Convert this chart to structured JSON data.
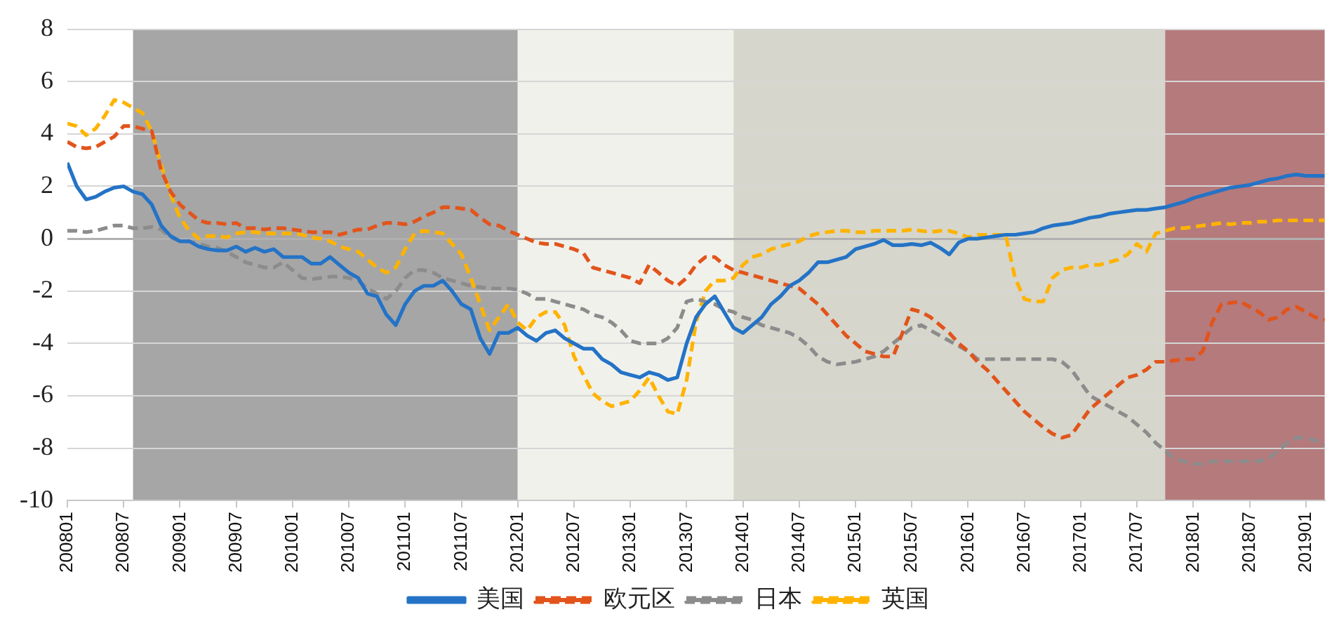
{
  "chart_data": {
    "type": "line",
    "legend": "bottom",
    "grid": "y",
    "marker": "none",
    "xlim": [
      "2008-01",
      "2019-03"
    ],
    "ylim": [
      -10,
      8
    ],
    "yticks": [
      -10,
      -8,
      -6,
      -4,
      -2,
      0,
      2,
      4,
      6,
      8
    ],
    "xticks": [
      {
        "value": "2008-01",
        "label": "200801"
      },
      {
        "value": "2008-07",
        "label": "200807"
      },
      {
        "value": "2009-01",
        "label": "200901"
      },
      {
        "value": "2009-07",
        "label": "200907"
      },
      {
        "value": "2010-01",
        "label": "201001"
      },
      {
        "value": "2010-07",
        "label": "201007"
      },
      {
        "value": "2011-01",
        "label": "201101"
      },
      {
        "value": "2011-07",
        "label": "201107"
      },
      {
        "value": "2012-01",
        "label": "201201"
      },
      {
        "value": "2012-07",
        "label": "201207"
      },
      {
        "value": "2013-01",
        "label": "201301"
      },
      {
        "value": "2013-07",
        "label": "201307"
      },
      {
        "value": "2014-01",
        "label": "201401"
      },
      {
        "value": "2014-07",
        "label": "201407"
      },
      {
        "value": "2015-01",
        "label": "201501"
      },
      {
        "value": "2015-07",
        "label": "201507"
      },
      {
        "value": "2016-01",
        "label": "201601"
      },
      {
        "value": "2016-07",
        "label": "201607"
      },
      {
        "value": "2017-01",
        "label": "201701"
      },
      {
        "value": "2017-07",
        "label": "201707"
      },
      {
        "value": "2018-01",
        "label": "201801"
      },
      {
        "value": "2018-07",
        "label": "201807"
      },
      {
        "value": "2019-01",
        "label": "201901"
      }
    ],
    "bands": [
      {
        "axis": "x",
        "from": "2008-08",
        "to": "2012-01",
        "color": "#a6a6a6"
      },
      {
        "axis": "x",
        "from": "2012-01",
        "to": "2013-12",
        "color": "#f1f1ec"
      },
      {
        "axis": "x",
        "from": "2013-12",
        "to": "2017-10",
        "color": "#d6d6cc"
      },
      {
        "axis": "x",
        "from": "2017-10",
        "to": "2019-03",
        "color": "#b57a7c"
      }
    ],
    "x": [
      "2008-01",
      "2008-02",
      "2008-03",
      "2008-04",
      "2008-05",
      "2008-06",
      "2008-07",
      "2008-08",
      "2008-09",
      "2008-10",
      "2008-11",
      "2008-12",
      "2009-01",
      "2009-02",
      "2009-03",
      "2009-04",
      "2009-05",
      "2009-06",
      "2009-07",
      "2009-08",
      "2009-09",
      "2009-10",
      "2009-11",
      "2009-12",
      "2010-01",
      "2010-02",
      "2010-03",
      "2010-04",
      "2010-05",
      "2010-06",
      "2010-07",
      "2010-08",
      "2010-09",
      "2010-10",
      "2010-11",
      "2010-12",
      "2011-01",
      "2011-02",
      "2011-03",
      "2011-04",
      "2011-05",
      "2011-06",
      "2011-07",
      "2011-08",
      "2011-09",
      "2011-10",
      "2011-11",
      "2011-12",
      "2012-01",
      "2012-02",
      "2012-03",
      "2012-04",
      "2012-05",
      "2012-06",
      "2012-07",
      "2012-08",
      "2012-09",
      "2012-10",
      "2012-11",
      "2012-12",
      "2013-01",
      "2013-02",
      "2013-03",
      "2013-04",
      "2013-05",
      "2013-06",
      "2013-07",
      "2013-08",
      "2013-09",
      "2013-10",
      "2013-11",
      "2013-12",
      "2014-01",
      "2014-02",
      "2014-03",
      "2014-04",
      "2014-05",
      "2014-06",
      "2014-07",
      "2014-08",
      "2014-09",
      "2014-10",
      "2014-11",
      "2014-12",
      "2015-01",
      "2015-02",
      "2015-03",
      "2015-04",
      "2015-05",
      "2015-06",
      "2015-07",
      "2015-08",
      "2015-09",
      "2015-10",
      "2015-11",
      "2015-12",
      "2016-01",
      "2016-02",
      "2016-03",
      "2016-04",
      "2016-05",
      "2016-06",
      "2016-07",
      "2016-08",
      "2016-09",
      "2016-10",
      "2016-11",
      "2016-12",
      "2017-01",
      "2017-02",
      "2017-03",
      "2017-04",
      "2017-05",
      "2017-06",
      "2017-07",
      "2017-08",
      "2017-09",
      "2017-10",
      "2017-11",
      "2017-12",
      "2018-01",
      "2018-02",
      "2018-03",
      "2018-04",
      "2018-05",
      "2018-06",
      "2018-07",
      "2018-08",
      "2018-09",
      "2018-10",
      "2018-11",
      "2018-12",
      "2019-01",
      "2019-02",
      "2019-03"
    ],
    "series": [
      {
        "name": "美国",
        "color": "#2473c6",
        "line_style": "solid",
        "values": [
          2.9,
          2.0,
          1.5,
          1.6,
          1.8,
          1.95,
          2.0,
          1.8,
          1.7,
          1.3,
          0.5,
          0.1,
          -0.1,
          -0.1,
          -0.3,
          -0.4,
          -0.45,
          -0.45,
          -0.3,
          -0.5,
          -0.35,
          -0.5,
          -0.4,
          -0.7,
          -0.7,
          -0.7,
          -0.95,
          -0.95,
          -0.7,
          -1.0,
          -1.3,
          -1.5,
          -2.1,
          -2.2,
          -2.9,
          -3.3,
          -2.5,
          -2.0,
          -1.8,
          -1.8,
          -1.6,
          -2.0,
          -2.5,
          -2.7,
          -3.8,
          -4.4,
          -3.6,
          -3.6,
          -3.4,
          -3.7,
          -3.9,
          -3.6,
          -3.5,
          -3.8,
          -4.0,
          -4.2,
          -4.2,
          -4.6,
          -4.8,
          -5.1,
          -5.2,
          -5.3,
          -5.1,
          -5.2,
          -5.4,
          -5.3,
          -4.0,
          -3.0,
          -2.5,
          -2.2,
          -2.8,
          -3.4,
          -3.6,
          -3.3,
          -3.0,
          -2.5,
          -2.2,
          -1.8,
          -1.6,
          -1.3,
          -0.9,
          -0.9,
          -0.8,
          -0.7,
          -0.4,
          -0.3,
          -0.2,
          -0.05,
          -0.25,
          -0.25,
          -0.2,
          -0.25,
          -0.15,
          -0.35,
          -0.6,
          -0.15,
          0,
          0,
          0.05,
          0.1,
          0.15,
          0.15,
          0.2,
          0.25,
          0.4,
          0.5,
          0.55,
          0.6,
          0.7,
          0.8,
          0.85,
          0.95,
          1.0,
          1.05,
          1.1,
          1.1,
          1.15,
          1.2,
          1.3,
          1.4,
          1.55,
          1.65,
          1.75,
          1.85,
          1.95,
          2.0,
          2.05,
          2.15,
          2.25,
          2.3,
          2.4,
          2.45,
          2.4,
          2.4,
          2.4
        ]
      },
      {
        "name": "欧元区",
        "color": "#e2541b",
        "line_style": "dashed",
        "values": [
          3.7,
          3.5,
          3.45,
          3.5,
          3.7,
          3.9,
          4.3,
          4.3,
          4.2,
          4.1,
          2.6,
          1.8,
          1.3,
          1.0,
          0.7,
          0.6,
          0.6,
          0.55,
          0.6,
          0.4,
          0.4,
          0.35,
          0.4,
          0.4,
          0.35,
          0.3,
          0.25,
          0.25,
          0.25,
          0.15,
          0.25,
          0.35,
          0.35,
          0.5,
          0.6,
          0.6,
          0.55,
          0.65,
          0.85,
          1.0,
          1.2,
          1.2,
          1.15,
          1.1,
          0.8,
          0.55,
          0.5,
          0.3,
          0.15,
          0.0,
          -0.15,
          -0.2,
          -0.2,
          -0.3,
          -0.4,
          -0.55,
          -1.1,
          -1.2,
          -1.3,
          -1.4,
          -1.5,
          -1.7,
          -1.0,
          -1.3,
          -1.6,
          -1.8,
          -1.5,
          -1.0,
          -0.7,
          -0.7,
          -1.0,
          -1.2,
          -1.3,
          -1.4,
          -1.5,
          -1.6,
          -1.7,
          -1.8,
          -1.9,
          -2.2,
          -2.5,
          -2.9,
          -3.3,
          -3.7,
          -4.0,
          -4.3,
          -4.4,
          -4.5,
          -4.5,
          -3.6,
          -2.7,
          -2.8,
          -3.0,
          -3.3,
          -3.6,
          -4.0,
          -4.3,
          -4.7,
          -5.0,
          -5.4,
          -5.8,
          -6.2,
          -6.6,
          -6.9,
          -7.2,
          -7.45,
          -7.6,
          -7.5,
          -7.0,
          -6.5,
          -6.2,
          -5.9,
          -5.6,
          -5.3,
          -5.2,
          -5.0,
          -4.7,
          -4.7,
          -4.65,
          -4.6,
          -4.6,
          -4.3,
          -3.2,
          -2.5,
          -2.45,
          -2.4,
          -2.6,
          -2.8,
          -3.1,
          -3.0,
          -2.7,
          -2.6,
          -2.8,
          -3.0,
          -3.1
        ]
      },
      {
        "name": "日本",
        "color": "#8c8c8c",
        "line_style": "dashed",
        "values": [
          0.3,
          0.3,
          0.25,
          0.3,
          0.4,
          0.5,
          0.5,
          0.4,
          0.4,
          0.45,
          0.35,
          0.05,
          -0.1,
          -0.1,
          -0.2,
          -0.3,
          -0.35,
          -0.5,
          -0.7,
          -0.9,
          -1.0,
          -1.1,
          -1.1,
          -0.9,
          -1.2,
          -1.5,
          -1.55,
          -1.5,
          -1.45,
          -1.45,
          -1.5,
          -1.6,
          -1.9,
          -2.1,
          -2.3,
          -2.0,
          -1.5,
          -1.2,
          -1.2,
          -1.3,
          -1.5,
          -1.6,
          -1.7,
          -1.8,
          -1.85,
          -1.9,
          -1.9,
          -1.9,
          -1.95,
          -2.1,
          -2.3,
          -2.3,
          -2.4,
          -2.5,
          -2.6,
          -2.7,
          -2.9,
          -3.0,
          -3.2,
          -3.5,
          -3.9,
          -4.0,
          -4.0,
          -4.0,
          -3.8,
          -3.4,
          -2.4,
          -2.3,
          -2.4,
          -2.5,
          -2.7,
          -2.8,
          -3.0,
          -3.1,
          -3.3,
          -3.4,
          -3.5,
          -3.6,
          -3.8,
          -4.1,
          -4.5,
          -4.7,
          -4.8,
          -4.75,
          -4.7,
          -4.6,
          -4.5,
          -4.3,
          -4.0,
          -3.7,
          -3.4,
          -3.3,
          -3.5,
          -3.7,
          -3.9,
          -4.1,
          -4.3,
          -4.6,
          -4.6,
          -4.6,
          -4.6,
          -4.6,
          -4.6,
          -4.6,
          -4.6,
          -4.6,
          -4.7,
          -5.0,
          -5.5,
          -6.0,
          -6.2,
          -6.4,
          -6.6,
          -6.8,
          -7.1,
          -7.4,
          -7.8,
          -8.1,
          -8.4,
          -8.5,
          -8.6,
          -8.6,
          -8.5,
          -8.5,
          -8.5,
          -8.5,
          -8.5,
          -8.5,
          -8.4,
          -8.1,
          -7.8,
          -7.6,
          -7.6,
          -7.7,
          -7.9
        ]
      },
      {
        "name": "英国",
        "color": "#ffb300",
        "line_style": "dashed",
        "values": [
          4.4,
          4.3,
          3.95,
          4.2,
          4.7,
          5.3,
          5.2,
          5.0,
          4.8,
          4.1,
          2.8,
          1.7,
          0.8,
          0.3,
          0.0,
          0.1,
          0.1,
          0.05,
          0.2,
          0.25,
          0.25,
          0.2,
          0.2,
          0.2,
          0.2,
          0.15,
          0.05,
          0.0,
          -0.1,
          -0.3,
          -0.4,
          -0.5,
          -0.8,
          -1.1,
          -1.3,
          -1.1,
          -0.4,
          0.2,
          0.3,
          0.25,
          0.2,
          -0.2,
          -0.6,
          -1.5,
          -2.5,
          -3.5,
          -3.0,
          -2.5,
          -3.2,
          -3.5,
          -3.0,
          -2.8,
          -2.8,
          -3.3,
          -4.5,
          -5.2,
          -5.9,
          -6.2,
          -6.4,
          -6.3,
          -6.2,
          -5.8,
          -5.3,
          -6.0,
          -6.6,
          -6.7,
          -5.4,
          -3.2,
          -2.0,
          -1.6,
          -1.6,
          -1.5,
          -1.0,
          -0.7,
          -0.6,
          -0.4,
          -0.3,
          -0.2,
          -0.1,
          0.1,
          0.2,
          0.25,
          0.3,
          0.3,
          0.25,
          0.25,
          0.3,
          0.3,
          0.3,
          0.3,
          0.35,
          0.3,
          0.25,
          0.3,
          0.3,
          0.2,
          0.05,
          0.15,
          0.15,
          0.15,
          0.15,
          -1.5,
          -2.3,
          -2.4,
          -2.4,
          -1.5,
          -1.2,
          -1.1,
          -1.1,
          -1.0,
          -1.0,
          -0.9,
          -0.8,
          -0.6,
          -0.2,
          -0.5,
          0.2,
          0.3,
          0.4,
          0.4,
          0.45,
          0.5,
          0.55,
          0.6,
          0.55,
          0.6,
          0.6,
          0.65,
          0.65,
          0.7,
          0.7,
          0.7,
          0.7,
          0.7,
          0.7
        ]
      }
    ]
  }
}
